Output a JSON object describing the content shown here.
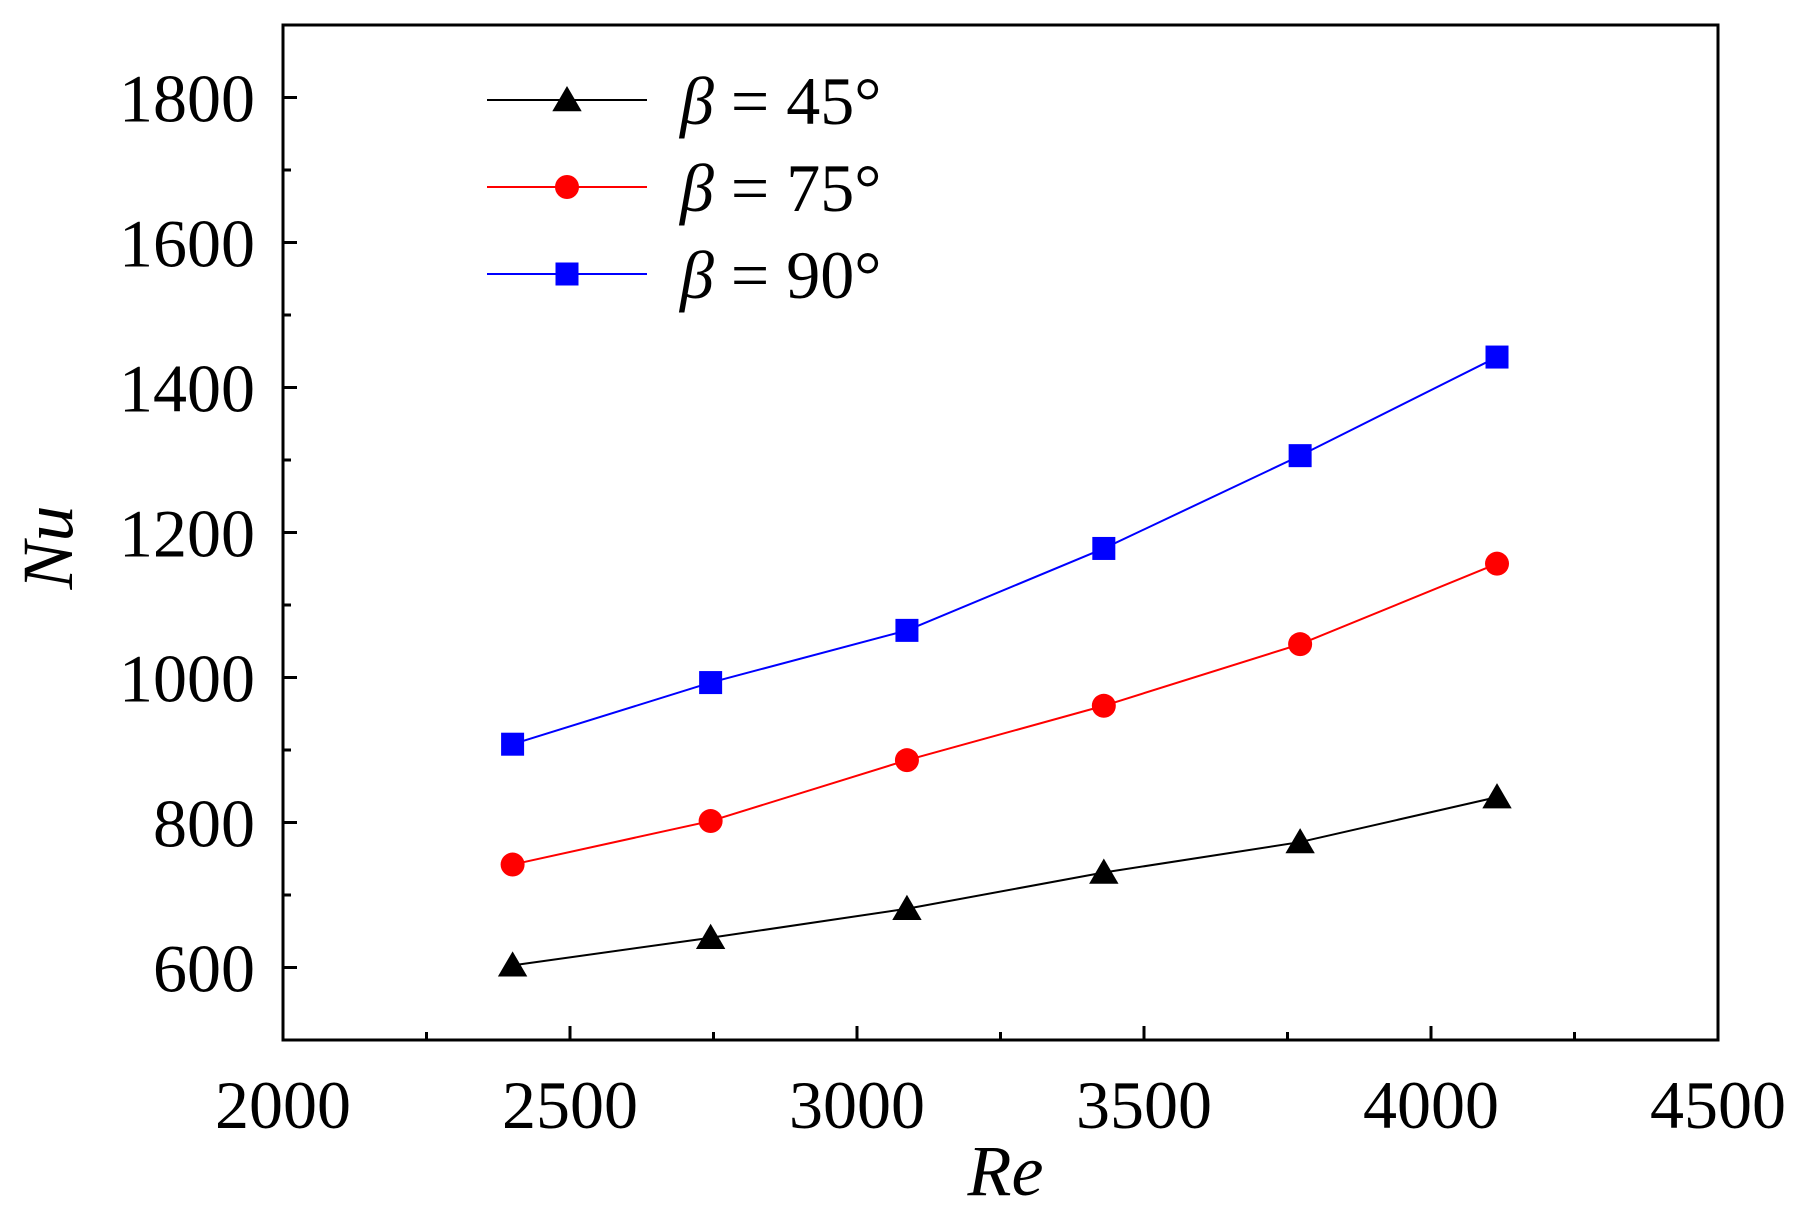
{
  "chart_data": {
    "type": "line",
    "title": "",
    "xlabel": "Re",
    "ylabel": "Nu",
    "xlim": [
      2000,
      4500
    ],
    "ylim": [
      500,
      1900
    ],
    "xticks": [
      2000,
      2500,
      3000,
      3500,
      4000,
      4500
    ],
    "yticks": [
      600,
      800,
      1000,
      1200,
      1400,
      1600,
      1800
    ],
    "x": [
      2400,
      2745,
      3087,
      3430,
      3772,
      4115
    ],
    "series": [
      {
        "name": "β = 45°",
        "symbol": "β",
        "value_label": "= 45°",
        "color": "#000000",
        "marker": "triangle",
        "values": [
          603,
          641,
          681,
          731,
          773,
          835
        ]
      },
      {
        "name": "β = 75°",
        "symbol": "β",
        "value_label": "= 75°",
        "color": "#ff0000",
        "marker": "circle",
        "values": [
          742,
          802,
          886,
          961,
          1046,
          1157
        ]
      },
      {
        "name": "β = 90°",
        "symbol": "β",
        "value_label": "= 90°",
        "color": "#0000ff",
        "marker": "square",
        "values": [
          908,
          993,
          1065,
          1178,
          1306,
          1442
        ]
      }
    ],
    "grid": false,
    "legend_position": "top-left"
  }
}
